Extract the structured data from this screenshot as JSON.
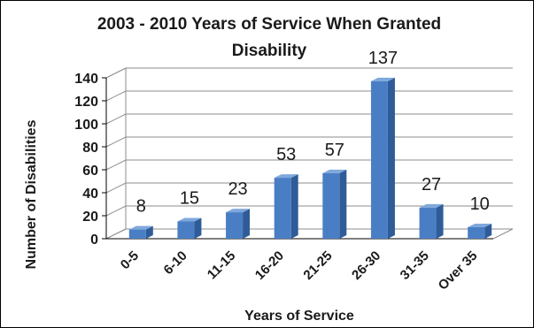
{
  "chart_data": {
    "type": "bar",
    "title": "2003 - 2010 Years of Service When Granted Disability",
    "title_lines": [
      "2003 - 2010 Years of Service When Granted",
      "Disability"
    ],
    "xlabel": "Years of Service",
    "ylabel": "Number of Disabilities",
    "categories": [
      "0-5",
      "6-10",
      "11-15",
      "16-20",
      "21-25",
      "26-30",
      "31-35",
      "Over 35"
    ],
    "values": [
      8,
      15,
      23,
      53,
      57,
      137,
      27,
      10
    ],
    "data_labels": [
      "8",
      "15",
      "23",
      "53",
      "57",
      "137",
      "27",
      "10"
    ],
    "yticks": [
      "0",
      "20",
      "40",
      "60",
      "80",
      "100",
      "120",
      "140"
    ],
    "ylim": [
      0,
      140
    ],
    "grid": true,
    "legend": "none",
    "style": "3d-column",
    "colors": {
      "bar_front": "#4a7ec4",
      "bar_side": "#2f5c99",
      "bar_top": "#7fa8dc",
      "grid": "#8c8c8c",
      "text": "#1a1a1a",
      "frame": "#000000"
    }
  }
}
